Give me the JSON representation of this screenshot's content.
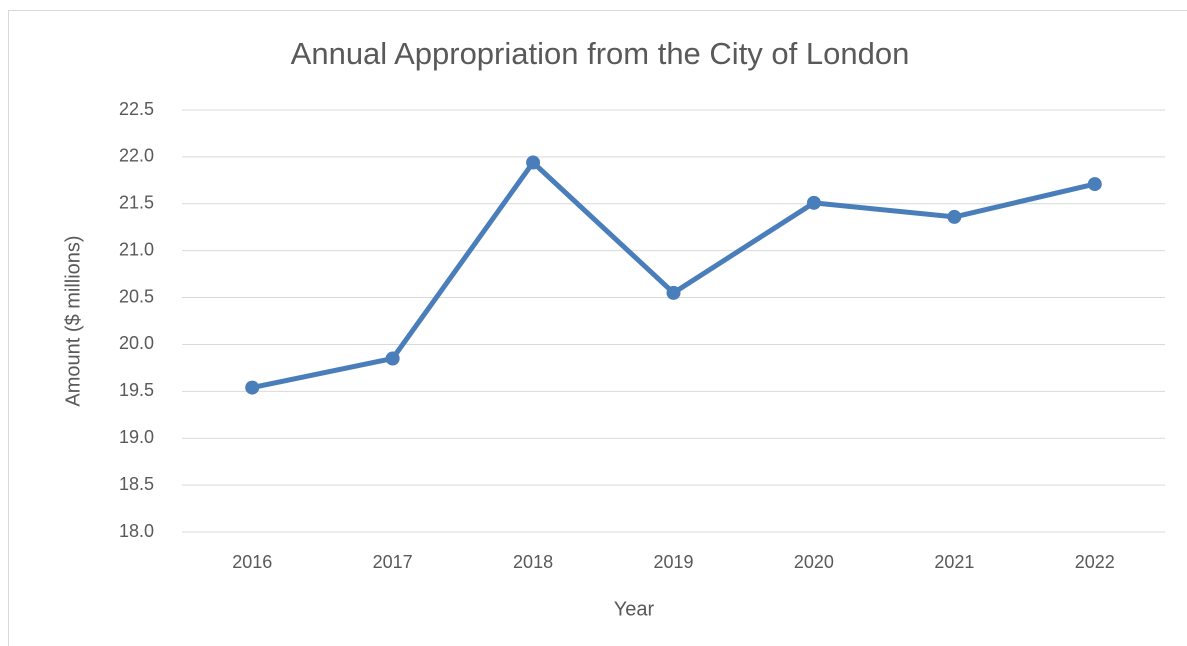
{
  "chart_data": {
    "type": "line",
    "title": "Annual Appropriation from the City of London",
    "x_label": "Year",
    "y_label": "Amount ($ millions)",
    "categories": [
      "2016",
      "2017",
      "2018",
      "2019",
      "2020",
      "2021",
      "2022"
    ],
    "series": [
      {
        "name": "Amount",
        "color": "#4a7ebb",
        "values": [
          19.54,
          19.85,
          21.94,
          20.55,
          21.51,
          21.36,
          21.71
        ]
      }
    ],
    "ylim": [
      18,
      22.5
    ],
    "yticks": [
      {
        "value": 18,
        "label": "18.0"
      },
      18.5,
      {
        "value": 19,
        "label": "19.0"
      },
      19.5,
      {
        "value": 20,
        "label": "20.0"
      },
      20.5,
      {
        "value": 21,
        "label": "21.0"
      },
      21.5,
      {
        "value": 22,
        "label": "22.0"
      },
      22.5
    ],
    "grid": true,
    "legend": false
  }
}
